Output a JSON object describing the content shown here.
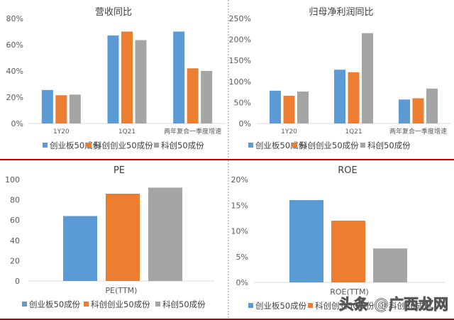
{
  "colors": {
    "s1": "#5b9bd5",
    "s2": "#ed7d31",
    "s3": "#a5a5a5",
    "divider_red": "#c00000",
    "divider_gray": "#999999"
  },
  "watermark": "头条 @广西龙网",
  "chart_data": [
    {
      "type": "bar",
      "title": "营收同比",
      "categories": [
        "1Y20",
        "1Q21",
        "两年复合一季度增速"
      ],
      "series": [
        {
          "name": "创业板50成份",
          "values": [
            25.5,
            67,
            70
          ]
        },
        {
          "name": "科创创业50成份",
          "values": [
            21.5,
            70,
            42
          ]
        },
        {
          "name": "科创50成份",
          "values": [
            22,
            63.5,
            40
          ]
        }
      ],
      "ylim": [
        0,
        80
      ],
      "yticks": [
        "0%",
        "20%",
        "40%",
        "60%",
        "80%"
      ],
      "xlabel": "",
      "ylabel": "",
      "legend": "bottom",
      "grid": false
    },
    {
      "type": "bar",
      "title": "归母净利润同比",
      "categories": [
        "1Y20",
        "1Q21",
        "两年复合一季度增速"
      ],
      "series": [
        {
          "name": "创业板50成份",
          "values": [
            78,
            128,
            57
          ]
        },
        {
          "name": "科创创业50成份",
          "values": [
            66,
            122,
            60
          ]
        },
        {
          "name": "科创50成份",
          "values": [
            76,
            215,
            83
          ]
        }
      ],
      "ylim": [
        0,
        250
      ],
      "yticks": [
        "0%",
        "50%",
        "100%",
        "150%",
        "200%",
        "250%"
      ],
      "xlabel": "",
      "ylabel": "",
      "legend": "bottom",
      "grid": false
    },
    {
      "type": "bar",
      "title": "PE",
      "categories": [
        ""
      ],
      "series": [
        {
          "name": "创业板50成份",
          "values": [
            64
          ]
        },
        {
          "name": "科创创业50成份",
          "values": [
            86
          ]
        },
        {
          "name": "科创50成份",
          "values": [
            92
          ]
        }
      ],
      "ylim": [
        0,
        100
      ],
      "yticks": [
        "0",
        "20",
        "40",
        "60",
        "80",
        "100"
      ],
      "xlabel": "PE(TTM)",
      "ylabel": "",
      "legend": "bottom",
      "grid": false
    },
    {
      "type": "bar",
      "title": "ROE",
      "categories": [
        ""
      ],
      "series": [
        {
          "name": "创业板50成份",
          "values": [
            16
          ]
        },
        {
          "name": "科创创业50成份",
          "values": [
            12
          ]
        },
        {
          "name": "科创50成份",
          "values": [
            6.6
          ]
        }
      ],
      "ylim": [
        0,
        20
      ],
      "yticks": [
        "0%",
        "5%",
        "10%",
        "15%",
        "20%"
      ],
      "xlabel": "ROE(TTM)",
      "ylabel": "",
      "legend": "bottom",
      "grid": false
    }
  ]
}
